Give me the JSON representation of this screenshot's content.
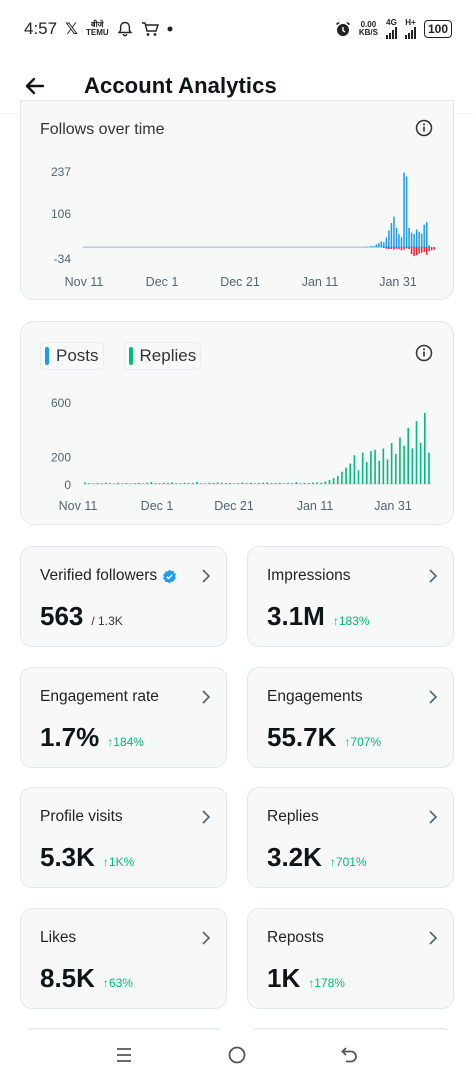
{
  "status_bar": {
    "time": "4:57",
    "x_glyph": "𝕏",
    "mini_label_top": "बीजे",
    "mini_label_bottom": "TEMU",
    "net_speed_top": "0.00",
    "net_speed_bottom": "KB/S",
    "net_1": "4G",
    "net_2": "H+",
    "battery": "100",
    "icons": [
      "bell-icon",
      "cart-icon",
      "alarm-icon",
      "signal-icon"
    ]
  },
  "header": {
    "title": "Account Analytics",
    "back_icon": "arrow-left-icon"
  },
  "charts": {
    "follows": {
      "title": "Follows over time",
      "info_icon": "info-icon"
    },
    "posts_replies": {
      "legend_posts": "Posts",
      "legend_replies": "Replies",
      "info_icon": "info-icon"
    }
  },
  "chart_data": [
    {
      "type": "bar",
      "title": "Follows over time",
      "y_ticks": [
        237,
        106,
        -34
      ],
      "x_ticks": [
        "Nov 11",
        "Dec 1",
        "Dec 21",
        "Jan 11",
        "Jan 31"
      ],
      "ylim": [
        -34,
        237
      ],
      "colors": {
        "positive": "#1d9bf0",
        "negative": "#f4212e"
      },
      "series": [
        {
          "values": [
            0,
            0,
            0,
            0,
            0,
            0,
            0,
            0,
            0,
            0,
            0,
            0,
            0,
            0,
            0,
            0,
            0,
            0,
            0,
            0,
            0,
            0,
            0,
            0,
            0,
            0,
            0,
            0,
            0,
            0,
            0,
            0,
            0,
            0,
            0,
            0,
            0,
            0,
            0,
            0,
            0,
            0,
            0,
            0,
            0,
            0,
            0,
            0,
            0,
            0,
            0,
            0,
            0,
            0,
            0,
            0,
            0,
            0,
            0,
            0,
            0,
            0,
            0,
            0,
            0,
            0,
            0,
            0,
            0,
            0,
            0,
            0,
            0,
            0,
            0,
            0,
            0,
            0,
            0,
            0,
            0,
            0,
            0,
            0,
            0,
            0,
            0,
            0,
            0,
            0,
            0,
            0,
            0,
            0,
            0,
            0,
            0,
            0,
            0,
            0,
            0,
            0,
            0,
            0,
            0,
            0,
            0,
            0,
            0,
            0,
            0,
            0,
            2,
            0,
            4,
            3,
            8,
            12,
            18,
            15,
            30,
            52,
            75,
            95,
            60,
            40,
            30,
            232,
            220,
            60,
            45,
            40,
            55,
            48,
            42,
            70,
            78,
            5
          ]
        },
        {
          "values": [
            0,
            0,
            0,
            0,
            0,
            0,
            0,
            0,
            0,
            0,
            0,
            0,
            0,
            0,
            0,
            0,
            0,
            0,
            0,
            0,
            0,
            0,
            0,
            0,
            0,
            0,
            0,
            0,
            0,
            0,
            0,
            0,
            0,
            0,
            0,
            0,
            0,
            0,
            0,
            0,
            0,
            0,
            0,
            0,
            0,
            0,
            0,
            0,
            0,
            0,
            0,
            0,
            0,
            0,
            0,
            0,
            0,
            0,
            0,
            0,
            0,
            0,
            0,
            0,
            0,
            0,
            0,
            0,
            0,
            0,
            0,
            0,
            0,
            0,
            0,
            0,
            0,
            0,
            0,
            0,
            0,
            0,
            0,
            0,
            0,
            0,
            0,
            0,
            0,
            0,
            0,
            0,
            0,
            0,
            0,
            0,
            0,
            0,
            0,
            0,
            0,
            0,
            0,
            0,
            0,
            0,
            0,
            0,
            0,
            0,
            0,
            0,
            0,
            0,
            0,
            0,
            0,
            0,
            0,
            -3,
            -5,
            -6,
            -6,
            -8,
            -5,
            -6,
            -10,
            -8,
            -4,
            -6,
            -22,
            -28,
            -25,
            -20,
            -18,
            -15,
            -24,
            -12,
            -10,
            -8
          ]
        }
      ]
    },
    {
      "type": "bar",
      "y_ticks": [
        600,
        200,
        0
      ],
      "x_ticks": [
        "Nov 11",
        "Dec 1",
        "Dec 21",
        "Jan 11",
        "Jan 31"
      ],
      "ylim": [
        0,
        600
      ],
      "legend": [
        "Posts",
        "Replies"
      ],
      "colors": {
        "Posts": "#1d9bf0",
        "Replies": "#00ba7c"
      },
      "series": [
        {
          "name": "Replies",
          "values": [
            12,
            6,
            4,
            8,
            5,
            10,
            6,
            4,
            9,
            5,
            7,
            4,
            6,
            8,
            5,
            10,
            15,
            7,
            6,
            9,
            8,
            12,
            5,
            6,
            10,
            8,
            7,
            15,
            6,
            5,
            9,
            8,
            12,
            10,
            6,
            8,
            5,
            7,
            11,
            6,
            9,
            5,
            8,
            10,
            12,
            6,
            7,
            9,
            5,
            8,
            6,
            14,
            5,
            7,
            8,
            10,
            12,
            9,
            18,
            30,
            45,
            60,
            90,
            120,
            150,
            210,
            100,
            230,
            160,
            240,
            250,
            170,
            260,
            180,
            300,
            220,
            340,
            280,
            410,
            260,
            460,
            300,
            520,
            230
          ]
        }
      ]
    }
  ],
  "stats": [
    {
      "label": "Verified followers",
      "value": "563",
      "sub": "/ 1.3K",
      "delta": "",
      "verified": true
    },
    {
      "label": "Impressions",
      "value": "3.1M",
      "sub": "",
      "delta": "↑183%"
    },
    {
      "label": "Engagement rate",
      "value": "1.7%",
      "sub": "",
      "delta": "↑184%"
    },
    {
      "label": "Engagements",
      "value": "55.7K",
      "sub": "",
      "delta": "↑707%"
    },
    {
      "label": "Profile visits",
      "value": "5.3K",
      "sub": "",
      "delta": "↑1K%"
    },
    {
      "label": "Replies",
      "value": "3.2K",
      "sub": "",
      "delta": "↑701%"
    },
    {
      "label": "Likes",
      "value": "8.5K",
      "sub": "",
      "delta": "↑63%"
    },
    {
      "label": "Reposts",
      "value": "1K",
      "sub": "",
      "delta": "↑178%"
    }
  ],
  "navbar": {
    "icons": [
      "menu-icon",
      "home-circle-icon",
      "back-nav-icon"
    ]
  }
}
